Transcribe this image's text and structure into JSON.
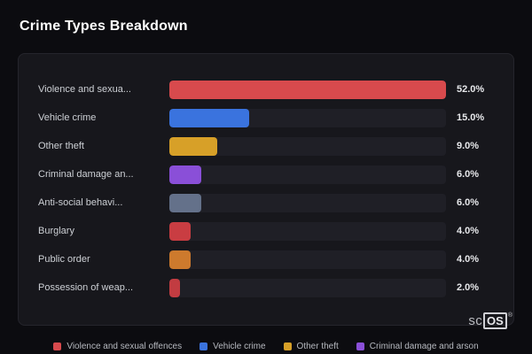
{
  "page": {
    "title": "Crime Types Breakdown"
  },
  "chart_data": {
    "type": "bar",
    "orientation": "horizontal",
    "title": "Crime Types Breakdown",
    "categories": [
      "Violence and sexua...",
      "Vehicle crime",
      "Other theft",
      "Criminal damage an...",
      "Anti-social behavi...",
      "Burglary",
      "Public order",
      "Possession of weap..."
    ],
    "values": [
      52.0,
      15.0,
      9.0,
      6.0,
      6.0,
      4.0,
      4.0,
      2.0
    ],
    "value_labels": [
      "52.0%",
      "15.0%",
      "9.0%",
      "6.0%",
      "6.0%",
      "4.0%",
      "4.0%",
      "2.0%"
    ],
    "bar_colors": [
      "#d84a4d",
      "#3a73de",
      "#d7a028",
      "#8a4fd8",
      "#64718a",
      "#c93d42",
      "#cd7a2d",
      "#c23c41"
    ],
    "xlim": [
      0,
      52
    ],
    "grid": false,
    "legend_position": "bottom"
  },
  "legend": {
    "items": [
      {
        "label": "Violence and sexual offences",
        "color": "#d84a4d"
      },
      {
        "label": "Vehicle crime",
        "color": "#3a73de"
      },
      {
        "label": "Other theft",
        "color": "#d7a028"
      },
      {
        "label": "Criminal damage and arson",
        "color": "#8a4fd8"
      }
    ]
  },
  "branding": {
    "prefix": "sc",
    "box": "OS",
    "registered": "®"
  }
}
